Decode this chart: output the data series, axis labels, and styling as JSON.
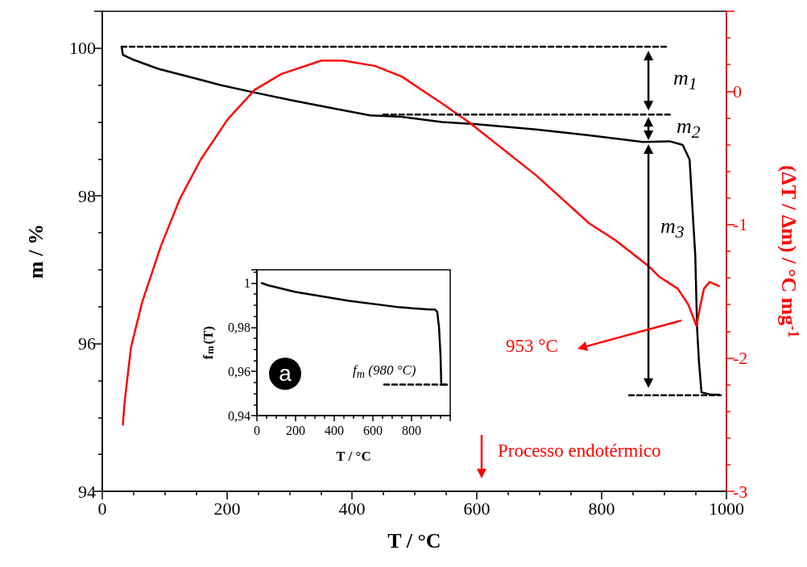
{
  "chart_data": [
    {
      "type": "line",
      "xlabel": "T / °C",
      "ylabel": "m / %",
      "y2label": "(ΔT / Δm) / °C mg$^{-1}$",
      "xlim": [
        0,
        1000
      ],
      "xticks": [
        0,
        200,
        400,
        600,
        800,
        1000
      ],
      "ylim": [
        94,
        100.5
      ],
      "yticks": [
        94,
        96,
        98,
        100
      ],
      "y2lim": [
        -3,
        0.6
      ],
      "y2ticks": [
        -3,
        -2,
        -1,
        0
      ],
      "marker": "none",
      "series": [
        {
          "color": "#000000",
          "line_style": "solid",
          "x": [
            31,
            33,
            51,
            90,
            136,
            190,
            244,
            300,
            373,
            429,
            480,
            544,
            600,
            695,
            780,
            866,
            909,
            930,
            941,
            946,
            950,
            953,
            956,
            960,
            975,
            988
          ],
          "values": [
            100.02,
            99.91,
            99.84,
            99.72,
            99.62,
            99.5,
            99.4,
            99.3,
            99.18,
            99.09,
            99.07,
            99.0,
            98.97,
            98.9,
            98.82,
            98.73,
            98.74,
            98.69,
            98.49,
            97.76,
            97.2,
            96.2,
            95.75,
            95.34,
            95.31,
            95.31
          ]
        },
        {
          "color": "#ff0000",
          "line_style": "solid",
          "axis": "y2",
          "x": [
            33,
            36,
            46,
            64,
            94,
            124,
            158,
            201,
            244,
            287,
            351,
            386,
            437,
            480,
            544,
            587,
            695,
            780,
            823,
            853,
            875,
            892,
            922,
            939,
            952,
            958,
            964,
            973,
            988
          ],
          "values": [
            -2.5,
            -2.32,
            -1.92,
            -1.58,
            -1.16,
            -0.81,
            -0.51,
            -0.21,
            0.01,
            0.13,
            0.23,
            0.23,
            0.19,
            0.11,
            -0.09,
            -0.23,
            -0.63,
            -0.99,
            -1.12,
            -1.23,
            -1.31,
            -1.39,
            -1.48,
            -1.6,
            -1.76,
            -1.61,
            -1.48,
            -1.43,
            -1.46
          ]
        },
        {
          "color": "#000000",
          "line_style": "dashed",
          "x": [
            31,
            907
          ],
          "values": [
            100.02,
            100.02
          ]
        },
        {
          "color": "#000000",
          "line_style": "dashed",
          "x": [
            450,
            911
          ],
          "values": [
            99.1,
            99.1
          ]
        },
        {
          "color": "#000000",
          "line_style": "dashed",
          "x": [
            844,
            991
          ],
          "values": [
            95.3,
            95.3
          ]
        }
      ],
      "annotations": [
        "m$_{1}$",
        "m$_{2}$",
        "m$_{3}$",
        "953 °C",
        "Processo endotérmico"
      ]
    },
    {
      "type": "line",
      "xlabel": "T / °C",
      "ylabel": "f$_{m}$(T)",
      "xlim": [
        0,
        1000
      ],
      "xticks": [
        0,
        200,
        400,
        600,
        800
      ],
      "ylim": [
        0.94,
        1.006
      ],
      "yticks": [
        {
          "value": 0.94,
          "label": "0,94"
        },
        {
          "value": 0.96,
          "label": "0,96"
        },
        {
          "value": 0.98,
          "label": "0,98"
        },
        1
      ],
      "marker": "none",
      "series": [
        {
          "color": "#000000",
          "line_style": "solid",
          "x": [
            25,
            58,
            200,
            475,
            742,
            892,
            921,
            933,
            942,
            950,
            954,
            983
          ],
          "values": [
            1.0,
            0.999,
            0.996,
            0.992,
            0.989,
            0.988,
            0.988,
            0.987,
            0.98,
            0.967,
            0.954,
            0.954
          ]
        },
        {
          "color": "#000000",
          "line_style": "dashed",
          "x": [
            658,
            988
          ],
          "values": [
            0.954,
            0.954
          ]
        }
      ],
      "annotations": [
        "a",
        "f$_{m}$ (980 °C)"
      ]
    }
  ]
}
